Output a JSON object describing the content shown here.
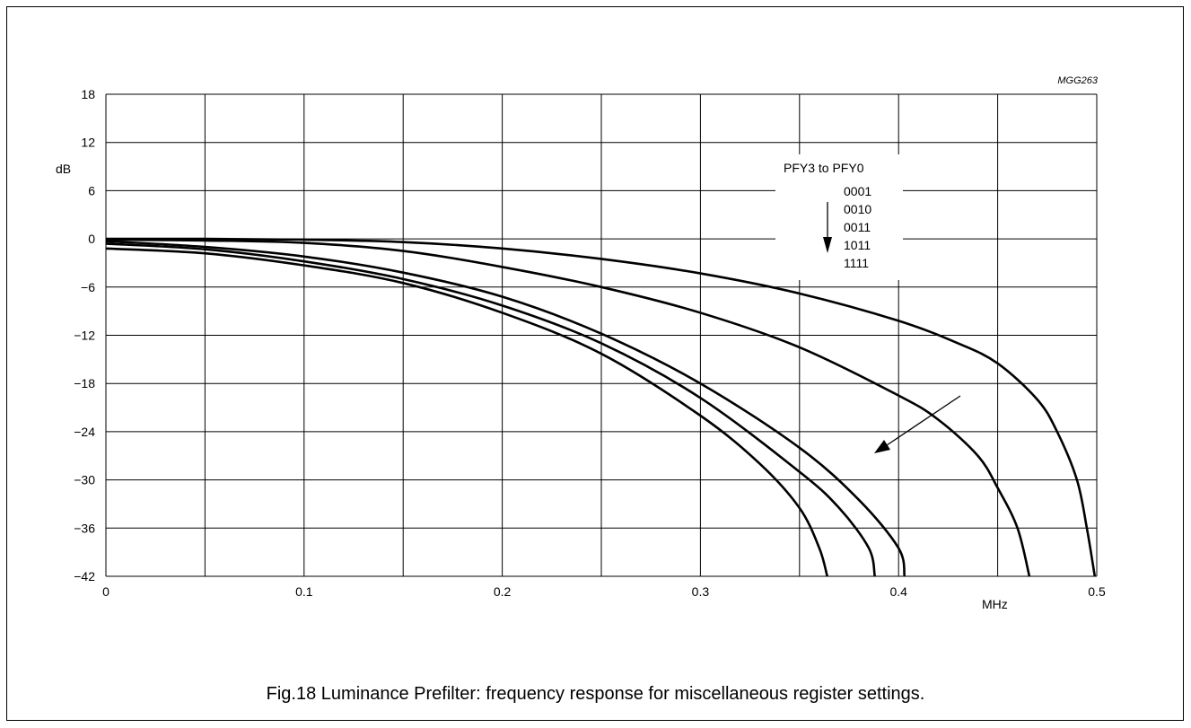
{
  "chart_data": {
    "type": "line",
    "code": "MGG263",
    "xlabel": "MHz",
    "ylabel": "dB",
    "xlim": [
      0,
      0.5
    ],
    "ylim": [
      -42,
      18
    ],
    "x_ticks": [
      0,
      0.05,
      0.1,
      0.15,
      0.2,
      0.25,
      0.3,
      0.35,
      0.4,
      0.45,
      0.5
    ],
    "x_tick_labels": [
      "0",
      "",
      "0.1",
      "",
      "0.2",
      "",
      "0.3",
      "",
      "0.4",
      "",
      "0.5"
    ],
    "y_ticks": [
      18,
      12,
      6,
      0,
      -6,
      -12,
      -18,
      -24,
      -30,
      -36,
      -42
    ],
    "y_tick_labels": [
      "18",
      "12",
      "6",
      "0",
      "−6",
      "−12",
      "−18",
      "−24",
      "−30",
      "−36",
      "−42"
    ],
    "grid": true,
    "legend": {
      "title": "PFY3 to PFY0",
      "entries": [
        "0001",
        "0010",
        "0011",
        "1011",
        "1111"
      ]
    },
    "series": [
      {
        "name": "0001",
        "points": [
          [
            0,
            0
          ],
          [
            0.05,
            0
          ],
          [
            0.1,
            -0.1
          ],
          [
            0.15,
            -0.4
          ],
          [
            0.2,
            -1.2
          ],
          [
            0.25,
            -2.5
          ],
          [
            0.3,
            -4.3
          ],
          [
            0.35,
            -6.8
          ],
          [
            0.4,
            -10.2
          ],
          [
            0.43,
            -13
          ],
          [
            0.45,
            -15.5
          ],
          [
            0.47,
            -20
          ],
          [
            0.48,
            -24
          ],
          [
            0.49,
            -30
          ],
          [
            0.495,
            -36
          ],
          [
            0.499,
            -42
          ]
        ]
      },
      {
        "name": "0010",
        "points": [
          [
            0,
            -0.1
          ],
          [
            0.05,
            -0.2
          ],
          [
            0.1,
            -0.5
          ],
          [
            0.15,
            -1.5
          ],
          [
            0.2,
            -3.5
          ],
          [
            0.25,
            -6
          ],
          [
            0.3,
            -9.2
          ],
          [
            0.35,
            -13.5
          ],
          [
            0.4,
            -19.5
          ],
          [
            0.42,
            -22.5
          ],
          [
            0.44,
            -27
          ],
          [
            0.45,
            -31
          ],
          [
            0.46,
            -36
          ],
          [
            0.466,
            -42
          ]
        ]
      },
      {
        "name": "0011",
        "points": [
          [
            0,
            -0.3
          ],
          [
            0.05,
            -1
          ],
          [
            0.1,
            -2.2
          ],
          [
            0.15,
            -4.2
          ],
          [
            0.2,
            -7.2
          ],
          [
            0.25,
            -11.8
          ],
          [
            0.3,
            -18
          ],
          [
            0.35,
            -26
          ],
          [
            0.38,
            -32.5
          ],
          [
            0.4,
            -38.5
          ],
          [
            0.403,
            -42
          ]
        ]
      },
      {
        "name": "1011",
        "points": [
          [
            0,
            -0.6
          ],
          [
            0.05,
            -1.3
          ],
          [
            0.1,
            -2.8
          ],
          [
            0.15,
            -5
          ],
          [
            0.2,
            -8.3
          ],
          [
            0.25,
            -13
          ],
          [
            0.3,
            -19.8
          ],
          [
            0.35,
            -29
          ],
          [
            0.37,
            -33.5
          ],
          [
            0.385,
            -38.5
          ],
          [
            0.388,
            -42
          ]
        ]
      },
      {
        "name": "1111",
        "points": [
          [
            0,
            -1.2
          ],
          [
            0.05,
            -1.8
          ],
          [
            0.1,
            -3.3
          ],
          [
            0.15,
            -5.5
          ],
          [
            0.2,
            -9.2
          ],
          [
            0.25,
            -14.3
          ],
          [
            0.3,
            -22
          ],
          [
            0.33,
            -28
          ],
          [
            0.35,
            -33.5
          ],
          [
            0.36,
            -38.5
          ],
          [
            0.364,
            -42
          ]
        ]
      }
    ],
    "caption": "Fig.18  Luminance Prefilter: frequency response for miscellaneous register settings."
  }
}
